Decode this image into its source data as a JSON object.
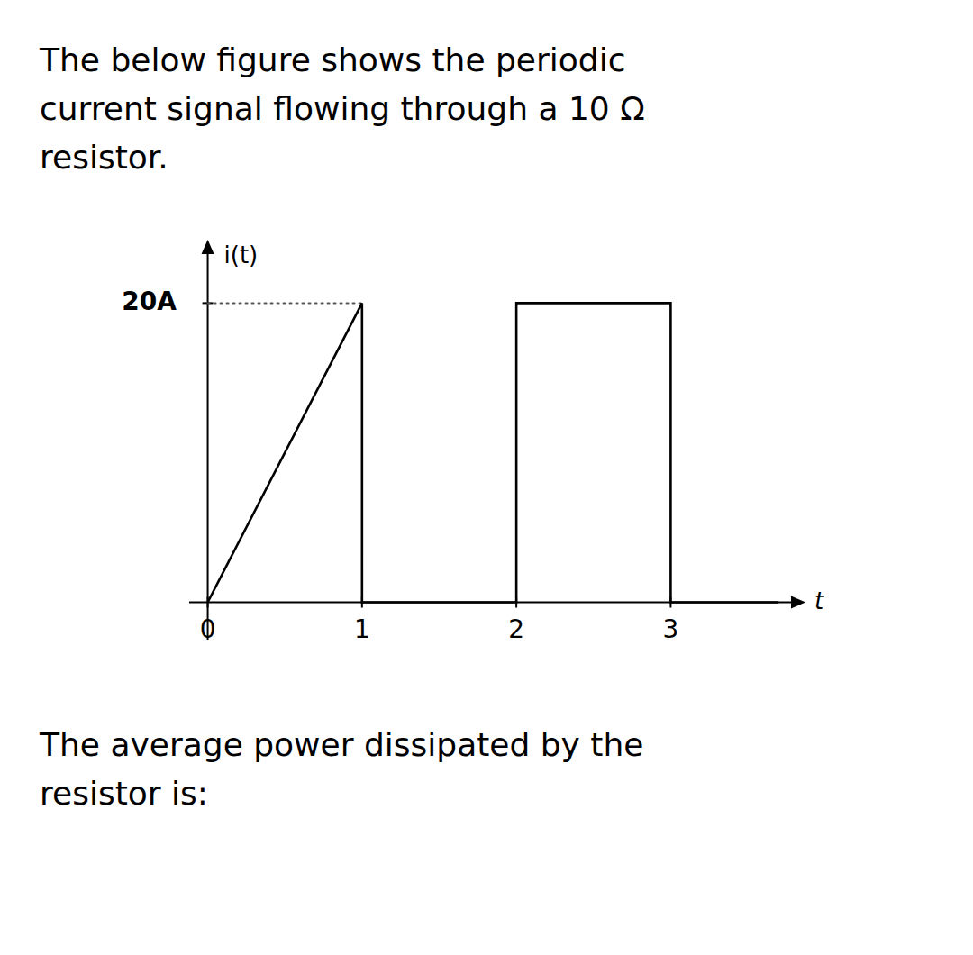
{
  "chart_data": {
    "type": "line",
    "title": "The below figure shows the periodic\ncurrent signal flowing through a 10 Ω\nresistor.",
    "annotations": [
      {
        "text": "The average power dissipated by the\nresistor is:"
      }
    ],
    "x_label": "t",
    "y_label": "i(t)",
    "x": [
      0,
      1,
      1,
      2,
      2,
      3,
      3,
      3.7
    ],
    "values": [
      0,
      20,
      0,
      0,
      20,
      20,
      0,
      0
    ],
    "color": "#000000",
    "xlim": [
      -0.12,
      3.85
    ],
    "ylim": [
      -2.5,
      24
    ],
    "xticks": [
      0,
      1,
      2,
      3
    ],
    "yticks": [
      {
        "value": 20,
        "label": "20A"
      }
    ],
    "reference_line": {
      "y": 20,
      "x_start": 0,
      "x_end": 1,
      "line_style": "dotted",
      "color": "#555555"
    },
    "grid": false
  }
}
